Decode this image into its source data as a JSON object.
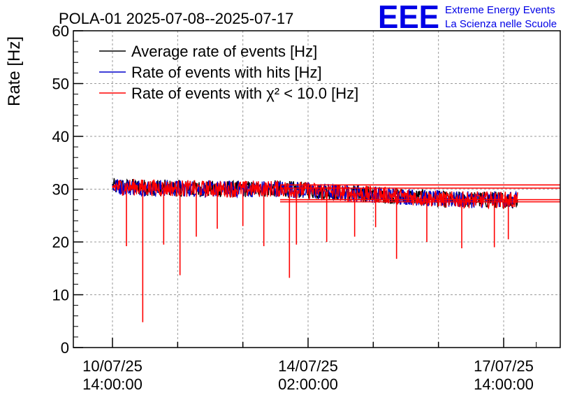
{
  "title": "POLA-01 2025-07-08--2025-07-17",
  "logo": {
    "mark": "EEE",
    "line1": "Extreme Energy Events",
    "line2": "La Scienza nelle Scuole",
    "color": "#0000e6"
  },
  "chart_data": {
    "type": "line",
    "ylabel": "Rate [Hz]",
    "xlabel": "",
    "ylim": [
      0,
      60
    ],
    "y_ticks": [
      0,
      10,
      20,
      30,
      40,
      50,
      60
    ],
    "x_ticks": [
      {
        "date": "10/07/25",
        "time": "14:00:00"
      },
      {
        "date": "14/07/25",
        "time": "02:00:00"
      },
      {
        "date": "17/07/25",
        "time": "14:00:00"
      }
    ],
    "grid": true,
    "legend_position": "top-left",
    "series": [
      {
        "name": "Average rate of events [Hz]",
        "color": "#000000",
        "x": [
          "10/07/25 14:00",
          "11/07/25 14:00",
          "12/07/25 14:00",
          "13/07/25 14:00",
          "14/07/25 14:00",
          "15/07/25 14:00",
          "16/07/25 14:00",
          "17/07/25 14:00",
          "17/07/25 20:00"
        ],
        "values": [
          30.5,
          30.2,
          30.0,
          30.1,
          29.4,
          28.8,
          28.0,
          28.0,
          27.8
        ]
      },
      {
        "name": "Rate of events with hits [Hz]",
        "color": "#0000cc",
        "x": [
          "10/07/25 14:00",
          "11/07/25 14:00",
          "12/07/25 14:00",
          "13/07/25 14:00",
          "14/07/25 14:00",
          "15/07/25 14:00",
          "16/07/25 14:00",
          "17/07/25 14:00",
          "17/07/25 20:00"
        ],
        "values": [
          30.5,
          30.2,
          30.0,
          30.1,
          29.4,
          28.8,
          28.0,
          28.0,
          27.8
        ]
      },
      {
        "name": "Rate of events with χ² < 10.0 [Hz]",
        "color": "#ff0000",
        "x": [
          "10/07/25 14:00",
          "11/07/25 14:00",
          "12/07/25 14:00",
          "13/07/25 14:00",
          "14/07/25 14:00",
          "15/07/25 14:00",
          "16/07/25 14:00",
          "17/07/25 14:00",
          "17/07/25 20:00"
        ],
        "values": [
          30.5,
          30.2,
          30.0,
          30.1,
          29.4,
          28.8,
          28.0,
          28.0,
          27.8
        ],
        "dips": [
          {
            "x": "11/07/25 03:00",
            "value": 4.8
          },
          {
            "x": "11/07/25 19:00",
            "value": 13.7
          },
          {
            "x": "13/07/25 18:00",
            "value": 13.2
          },
          {
            "x": "10/07/25 20:00",
            "value": 19.2
          },
          {
            "x": "11/07/25 12:00",
            "value": 19.5
          },
          {
            "x": "12/07/25 02:00",
            "value": 21.0
          },
          {
            "x": "12/07/25 11:00",
            "value": 22.5
          },
          {
            "x": "12/07/25 22:00",
            "value": 23.0
          },
          {
            "x": "13/07/25 07:00",
            "value": 19.2
          },
          {
            "x": "13/07/25 21:00",
            "value": 19.5
          },
          {
            "x": "14/07/25 10:00",
            "value": 20.0
          },
          {
            "x": "14/07/25 22:00",
            "value": 21.0
          },
          {
            "x": "15/07/25 07:00",
            "value": 22.8
          },
          {
            "x": "15/07/25 16:00",
            "value": 16.8
          },
          {
            "x": "16/07/25 05:00",
            "value": 20.0
          },
          {
            "x": "16/07/25 20:00",
            "value": 18.8
          },
          {
            "x": "17/07/25 10:00",
            "value": 19.0
          },
          {
            "x": "17/07/25 16:00",
            "value": 20.5
          }
        ],
        "trailing_levels": [
          30.8,
          30.2,
          28.0,
          27.6
        ]
      }
    ]
  }
}
